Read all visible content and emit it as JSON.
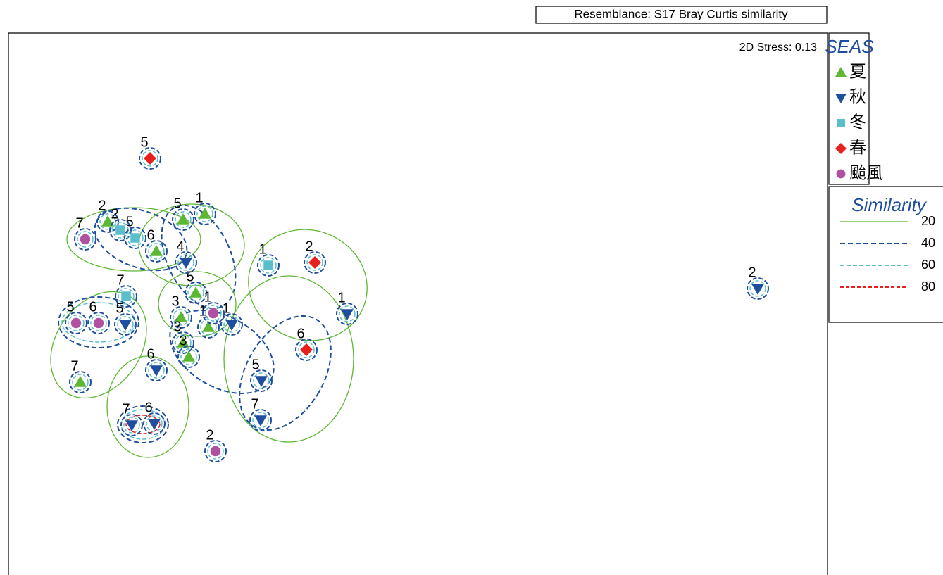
{
  "chart_data": {
    "type": "scatter",
    "title": "Resemblance: S17 Bray Curtis similarity",
    "annotation": "2D Stress: 0.13",
    "legend_title": "SEAS",
    "xlim": [
      0,
      1163
    ],
    "ylim": [
      0,
      770
    ],
    "series": [
      {
        "name": "夏",
        "color": "#5cb832",
        "marker": "triangle-up",
        "x": [
          141,
          210,
          248,
          279,
          266,
          284,
          245,
          248,
          256,
          102
        ],
        "values": [
          502,
          460,
          505,
          513,
          401,
          352,
          366,
          330,
          310,
          274
        ],
        "labels": [
          "2",
          "6",
          "5",
          "1",
          "5",
          "1",
          "3",
          "3",
          "3",
          "7"
        ]
      },
      {
        "name": "秋",
        "color": "#1f4e9e",
        "marker": "triangle-down",
        "x": [
          252,
          481,
          166,
          317,
          210,
          359,
          358,
          175,
          207,
          1064
        ],
        "values": [
          444,
          371,
          356,
          356,
          291,
          276,
          220,
          213,
          215,
          407
        ],
        "labels": [
          "4",
          "1",
          "5",
          "1",
          "6",
          "5",
          "7",
          "7",
          "6",
          "2"
        ]
      },
      {
        "name": "冬",
        "color": "#5bbfcb",
        "marker": "square",
        "x": [
          159,
          180,
          369,
          167
        ],
        "values": [
          490,
          479,
          440,
          396
        ],
        "labels": [
          "2",
          "5",
          "1",
          "7"
        ]
      },
      {
        "name": "春",
        "color": "#e8201c",
        "marker": "diamond",
        "x": [
          201,
          435,
          423
        ],
        "values": [
          592,
          444,
          320
        ],
        "labels": [
          "5",
          "2",
          "6"
        ]
      },
      {
        "name": "颱風",
        "color": "#b050a0",
        "marker": "circle",
        "x": [
          109,
          96,
          128,
          291,
          294
        ],
        "values": [
          477,
          358,
          358,
          372,
          176
        ],
        "labels": [
          "7",
          "5",
          "6",
          "1",
          "2"
        ]
      }
    ],
    "similarity_legend": {
      "title": "Similarity",
      "levels": [
        {
          "label": 20,
          "color": "#5cb832"
        },
        {
          "label": 40,
          "color": "#1f4e9e"
        },
        {
          "label": 60,
          "color": "#5bbfcb"
        },
        {
          "label": 80,
          "color": "#e8201c"
        }
      ]
    }
  }
}
